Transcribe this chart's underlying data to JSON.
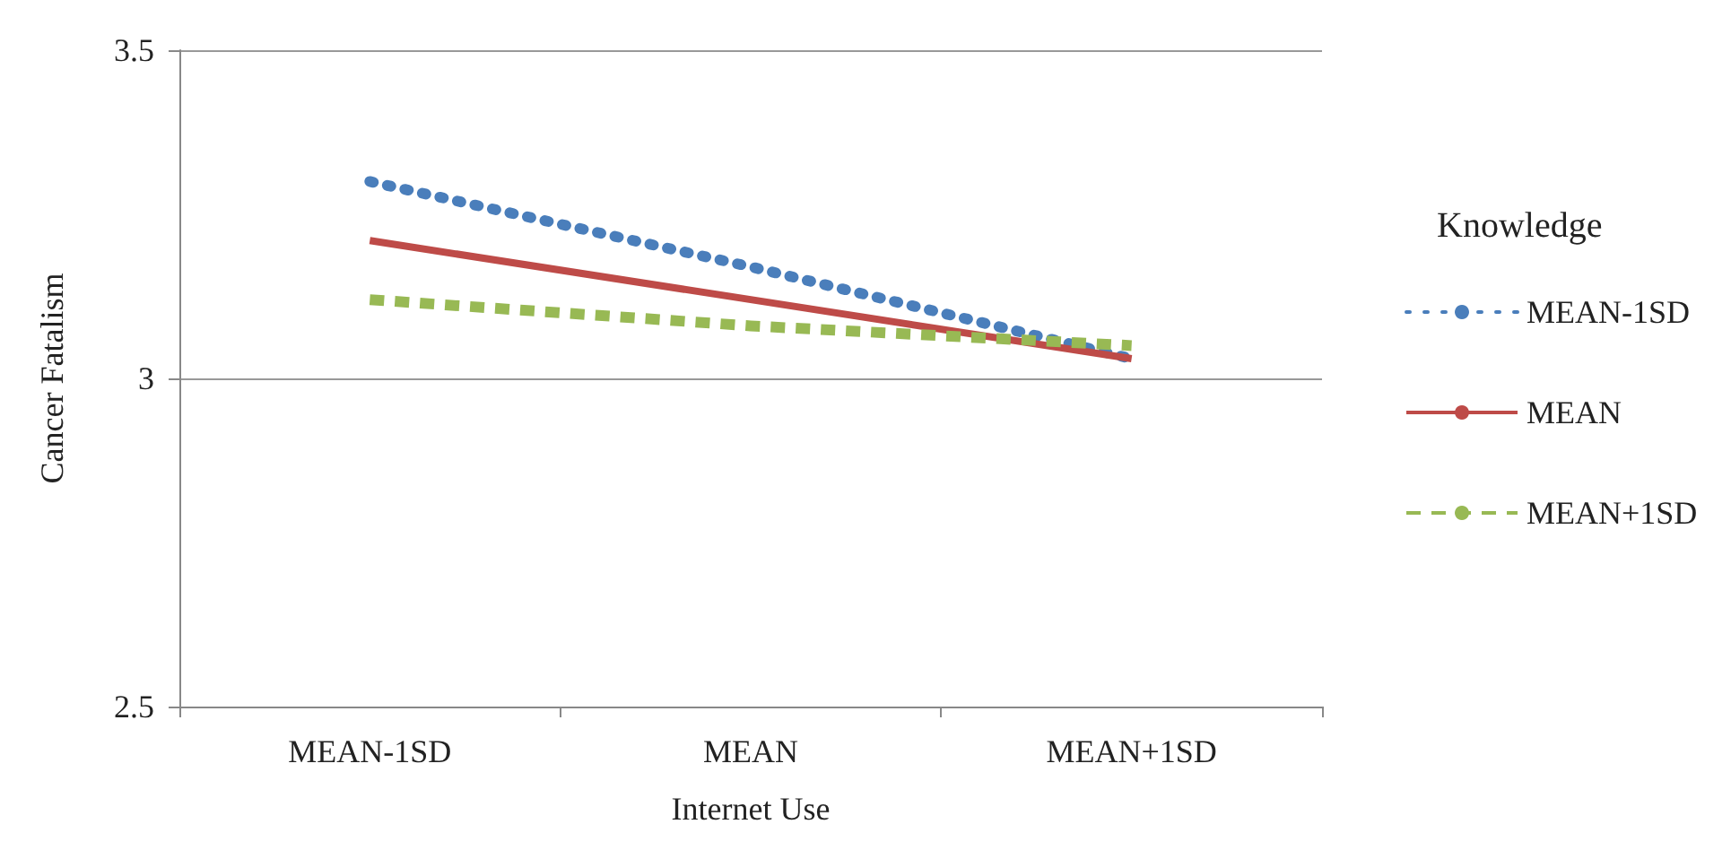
{
  "chart_data": {
    "type": "line",
    "xlabel": "Internet Use",
    "ylabel": "Cancer Fatalism",
    "legend_title": "Knowledge",
    "categories": [
      "MEAN-1SD",
      "MEAN",
      "MEAN+1SD"
    ],
    "series": [
      {
        "name": "MEAN-1SD",
        "color": "#4a7ebb",
        "values": [
          3.3,
          3.17,
          3.03
        ],
        "line_style": "dotted"
      },
      {
        "name": "MEAN",
        "color": "#be4b48",
        "values": [
          3.21,
          3.12,
          3.03
        ],
        "line_style": "solid"
      },
      {
        "name": "MEAN+1SD",
        "color": "#98b954",
        "values": [
          3.12,
          3.08,
          3.05
        ],
        "line_style": "dashed"
      }
    ],
    "ylim": [
      2.5,
      3.5
    ],
    "yticks": [
      2.5,
      3,
      3.5
    ],
    "grid": "y",
    "legend": "right",
    "marker": "none"
  }
}
